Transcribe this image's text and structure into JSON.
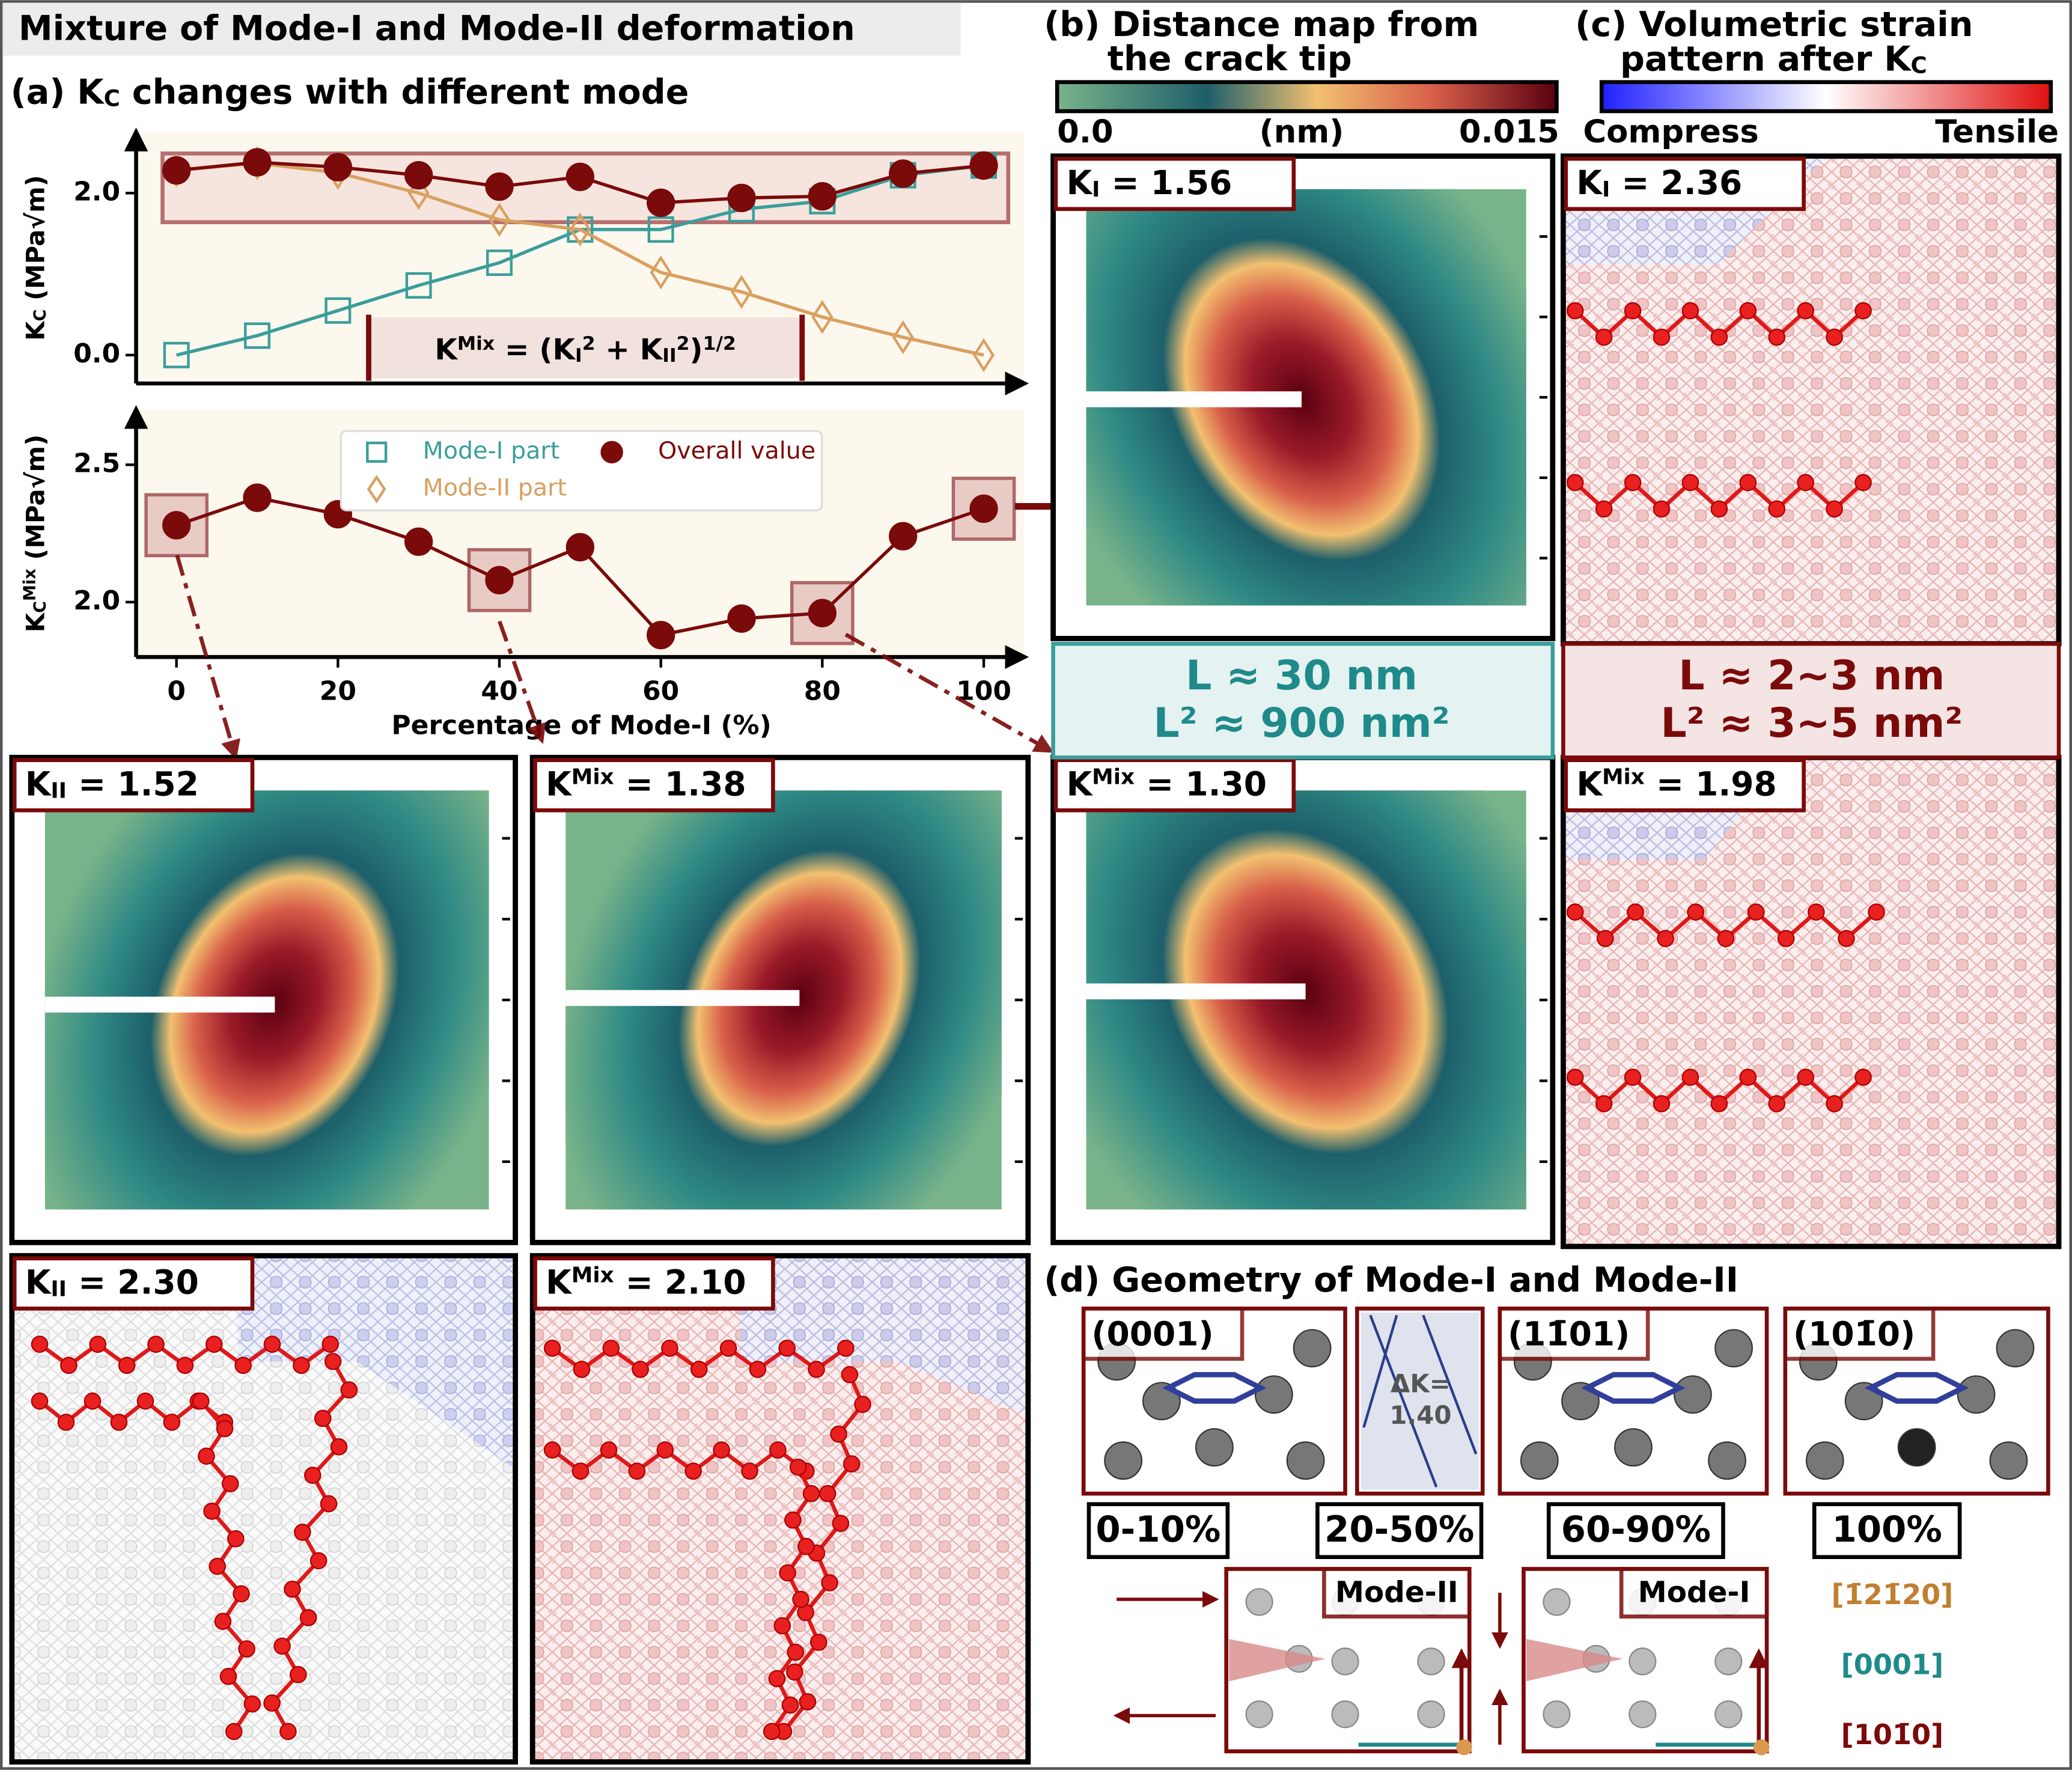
{
  "title": "Mixture of Mode-I and Mode-II deformation",
  "panel_a": {
    "title": [
      "(a) K",
      "C",
      " changes with different mode"
    ],
    "formula": [
      "K",
      "Mix",
      " = (K",
      "I",
      "2",
      " + K",
      "II",
      "2",
      ")",
      "1/2"
    ]
  },
  "chart_data": [
    {
      "type": "line",
      "ylabel": [
        "K",
        "C",
        " (MPa√m)"
      ],
      "x": [
        0,
        10,
        20,
        30,
        40,
        50,
        60,
        70,
        80,
        90,
        100
      ],
      "xlim": [
        -5,
        105
      ],
      "ylim": [
        -0.35,
        2.75
      ],
      "yticks": [
        {
          "value": 0,
          "label": "0.0"
        },
        {
          "value": 2,
          "label": "2.0"
        }
      ],
      "series": [
        {
          "name": "Mode-I part",
          "color": "#3a9e9b",
          "marker": "square",
          "filled": false,
          "values": [
            0,
            0.24,
            0.55,
            0.86,
            1.14,
            1.55,
            1.55,
            1.8,
            1.9,
            2.22,
            2.34
          ]
        },
        {
          "name": "Mode-II part",
          "color": "#d9a060",
          "marker": "diamond",
          "filled": false,
          "values": [
            2.28,
            2.37,
            2.25,
            2.0,
            1.67,
            1.55,
            1.02,
            0.78,
            0.47,
            0.22,
            0
          ]
        },
        {
          "name": "Overall value",
          "color": "#7b0a0a",
          "marker": "circle",
          "filled": true,
          "values": [
            2.28,
            2.38,
            2.32,
            2.22,
            2.08,
            2.2,
            1.88,
            1.94,
            1.96,
            2.24,
            2.34
          ]
        }
      ]
    },
    {
      "type": "line",
      "ylabel": [
        "K",
        "C",
        "Mix",
        " (MPa√m)"
      ],
      "xlabel": "Percentage of Mode-I (%)",
      "x": [
        0,
        10,
        20,
        30,
        40,
        50,
        60,
        70,
        80,
        90,
        100
      ],
      "xlim": [
        -5,
        105
      ],
      "ylim": [
        1.8,
        2.7
      ],
      "xticks": [
        0,
        20,
        40,
        60,
        80,
        100
      ],
      "yticks": [
        {
          "value": 2,
          "label": "2.0"
        },
        {
          "value": 2.5,
          "label": "2.5"
        }
      ],
      "highlight_x": [
        0,
        40,
        80,
        100
      ],
      "series": [
        {
          "color": "#7b0a0a",
          "marker": "circle",
          "filled": true,
          "values": [
            2.28,
            2.38,
            2.32,
            2.22,
            2.08,
            2.2,
            1.88,
            1.94,
            1.96,
            2.24,
            2.34
          ]
        }
      ]
    }
  ],
  "panel_b": {
    "title": [
      "(b) Distance map from",
      "the crack tip"
    ],
    "cbar_min": "0.0",
    "cbar_unit": "(nm)",
    "cbar_max": "0.015"
  },
  "panel_c": {
    "title": [
      "(c) Volumetric strain",
      "pattern after K",
      "C"
    ],
    "cbar_min": "Compress",
    "cbar_max": "Tensile"
  },
  "maps": [
    [
      "K",
      "I",
      " = 1.56"
    ],
    [
      "K",
      "II",
      " = 1.52"
    ],
    [
      "K",
      "Mix",
      " = 1.38"
    ],
    [
      "K",
      "Mix",
      " = 1.30"
    ],
    [
      "K",
      "I",
      " = 2.36"
    ],
    [
      "K",
      "Mix",
      " = 1.98"
    ],
    [
      "K",
      "II",
      " = 2.30"
    ],
    [
      "K",
      "Mix",
      " = 2.10"
    ]
  ],
  "length_scales": [
    [
      "L ≈ 30 nm",
      "L² ≈ 900 nm²"
    ],
    [
      "L ≈ 2~3 nm",
      "L² ≈ 3~5 nm²"
    ]
  ],
  "panel_d": {
    "title": "(d) Geometry of Mode-I and Mode-II",
    "planes": [
      "(0001)",
      "(11̄01)",
      "(101̄0)"
    ],
    "delta_k": [
      "ΔK=",
      "1.40"
    ],
    "ranges": [
      "0-10%",
      "20-50%",
      "60-90%",
      "100%"
    ],
    "modes": [
      "Mode-II",
      "Mode-I"
    ],
    "directions": [
      "[1̄21̄20]",
      "[0001]",
      "[101̄0]"
    ]
  }
}
